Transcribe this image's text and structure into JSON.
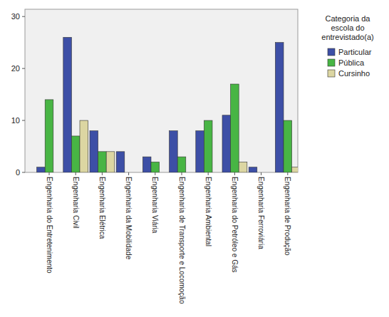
{
  "chart_data": {
    "type": "bar",
    "legend_title": "Categoria da escola do entrevistado(a)",
    "categories": [
      "Engenharia do Entretenimento",
      "Engenharia Civil",
      "Engenharia Elétrica",
      "Engenharia da Mobilidade",
      "Engenharia Viária",
      "Engenharia de Transporte e Locomoção",
      "Engenharia Ambiental",
      "Engenharia do Petróleo e Gás",
      "Engenharia Ferroviária",
      "Engenharia de Produção"
    ],
    "series": [
      {
        "name": "Particular",
        "color": "#3d4fa6",
        "values": [
          1,
          26,
          8,
          4,
          3,
          8,
          8,
          11,
          1,
          25
        ]
      },
      {
        "name": "Pública",
        "color": "#48b544",
        "values": [
          14,
          7,
          4,
          0,
          2,
          3,
          10,
          17,
          0,
          10
        ]
      },
      {
        "name": "Cursinho",
        "color": "#dcd6a2",
        "values": [
          0,
          10,
          4,
          0,
          0,
          0,
          0,
          2,
          0,
          1
        ]
      }
    ],
    "ylim": [
      0,
      31.4
    ],
    "yticks": [
      0,
      10,
      20,
      30
    ],
    "grid": false,
    "legend": "right"
  }
}
